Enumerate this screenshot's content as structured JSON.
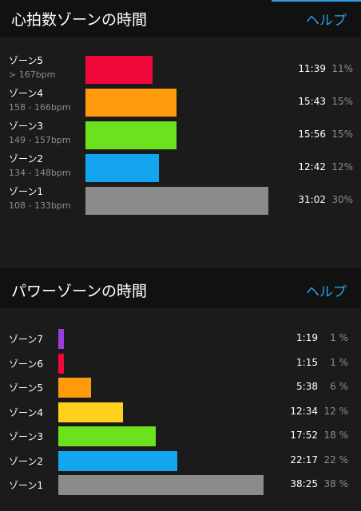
{
  "heart_rate": {
    "title": "心拍数ゾーンの時間",
    "help_label": "ヘルプ",
    "zones": [
      {
        "name": "ゾーン5",
        "range": "> 167bpm",
        "time": "11:39",
        "percent": "11%",
        "value": 11,
        "color": "#f0083a"
      },
      {
        "name": "ゾーン4",
        "range": "158 - 166bpm",
        "time": "15:43",
        "percent": "15%",
        "value": 15,
        "color": "#ff9a0c"
      },
      {
        "name": "ゾーン3",
        "range": "149 - 157bpm",
        "time": "15:56",
        "percent": "15%",
        "value": 15,
        "color": "#6ce21e"
      },
      {
        "name": "ゾーン2",
        "range": "134 - 148bpm",
        "time": "12:42",
        "percent": "12%",
        "value": 12,
        "color": "#14a5ef"
      },
      {
        "name": "ゾーン1",
        "range": "108 - 133bpm",
        "time": "31:02",
        "percent": "30%",
        "value": 30,
        "color": "#8b8b8b"
      }
    ]
  },
  "power": {
    "title": "パワーゾーンの時間",
    "help_label": "ヘルプ",
    "zones": [
      {
        "name": "ゾーン7",
        "time": "1:19",
        "percent": "1 %",
        "value": 1,
        "color": "#9b3ddc"
      },
      {
        "name": "ゾーン6",
        "time": "1:15",
        "percent": "1 %",
        "value": 1,
        "color": "#f0083a"
      },
      {
        "name": "ゾーン5",
        "time": "5:38",
        "percent": "6 %",
        "value": 6,
        "color": "#ff9a0c"
      },
      {
        "name": "ゾーン4",
        "time": "12:34",
        "percent": "12 %",
        "value": 12,
        "color": "#ffd11c"
      },
      {
        "name": "ゾーン3",
        "time": "17:52",
        "percent": "18 %",
        "value": 18,
        "color": "#6ce21e"
      },
      {
        "name": "ゾーン2",
        "time": "22:17",
        "percent": "22 %",
        "value": 22,
        "color": "#14a5ef"
      },
      {
        "name": "ゾーン1",
        "time": "38:25",
        "percent": "38 %",
        "value": 38,
        "color": "#8b8b8b"
      }
    ]
  }
}
